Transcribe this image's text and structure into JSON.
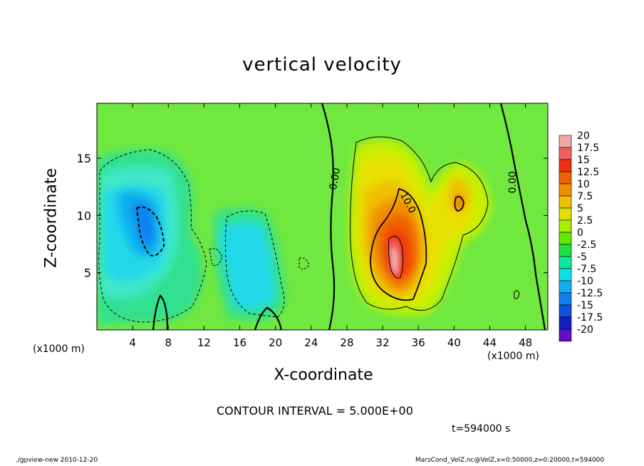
{
  "chart_data": {
    "type": "heatmap",
    "title": "vertical velocity",
    "xlabel": "X-coordinate",
    "ylabel": "Z-coordinate",
    "x_unit_left": "(x1000 m)",
    "x_unit_right": "(x1000 m)",
    "xlim": [
      0,
      50.5
    ],
    "ylim": [
      0,
      19.8
    ],
    "x_ticks": [
      4,
      8,
      12,
      16,
      20,
      24,
      28,
      32,
      36,
      40,
      44,
      48
    ],
    "y_ticks": [
      5,
      10,
      15
    ],
    "colorbar": {
      "labels": [
        "20",
        "17.5",
        "15",
        "12.5",
        "10",
        "7.5",
        "5",
        "2.5",
        "0",
        "-2.5",
        "-5",
        "-7.5",
        "-10",
        "-12.5",
        "-15",
        "-17.5",
        "-20"
      ],
      "colors": [
        "#f0a8a8",
        "#f06060",
        "#f03010",
        "#f06000",
        "#f09000",
        "#f0c000",
        "#e0e000",
        "#a8f000",
        "#60e800",
        "#20e040",
        "#10e8a0",
        "#10e0e8",
        "#10b0f0",
        "#1080f0",
        "#1050e0",
        "#1020c0",
        "#6010c0"
      ]
    },
    "contour_labels": [
      {
        "text": "0.00",
        "x": 26.7,
        "z": 13.2,
        "angle": -80
      },
      {
        "text": "10.0",
        "x": 34.8,
        "z": 11.1,
        "angle": 62
      },
      {
        "text": "0.00",
        "x": 46.6,
        "z": 12.9,
        "angle": -90
      }
    ],
    "contour_interval": "CONTOUR INTERVAL = 5.000E+00",
    "time": "t=594000 s"
  },
  "footer": {
    "left": "./gpview-new  2010-12-20",
    "right": "MarsCond_VelZ.nc@VelZ,x=0:50000,z=0:20000,t=594000"
  },
  "colors": {
    "background": "#ffffff",
    "field_base": "#70e840",
    "zero_contour": "#000000"
  }
}
